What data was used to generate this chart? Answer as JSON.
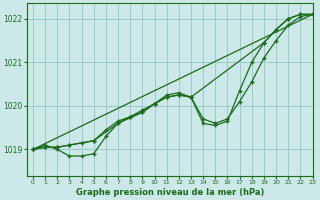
{
  "title": "Graphe pression niveau de la mer (hPa)",
  "bg_color": "#cce8e8",
  "grid_color": "#99cccc",
  "line_color": "#1a6b1a",
  "xlim": [
    -0.5,
    23
  ],
  "ylim": [
    1018.4,
    1022.35
  ],
  "yticks": [
    1019,
    1020,
    1021,
    1022
  ],
  "xticks": [
    0,
    1,
    2,
    3,
    4,
    5,
    6,
    7,
    8,
    9,
    10,
    11,
    12,
    13,
    14,
    15,
    16,
    17,
    18,
    19,
    20,
    21,
    22,
    23
  ],
  "series_straight": {
    "x": [
      0,
      23
    ],
    "y": [
      1019.0,
      1022.1
    ]
  },
  "series_main": {
    "x": [
      0,
      1,
      2,
      3,
      4,
      5,
      6,
      7,
      8,
      9,
      10,
      11,
      12,
      13,
      14,
      15,
      16,
      17,
      18,
      19,
      20,
      21,
      22,
      23
    ],
    "y": [
      1019.0,
      1019.1,
      1019.0,
      1018.85,
      1018.85,
      1018.9,
      1019.3,
      1019.6,
      1019.75,
      1019.85,
      1020.05,
      1020.25,
      1020.3,
      1020.2,
      1019.6,
      1019.55,
      1019.65,
      1020.35,
      1021.0,
      1021.45,
      1021.75,
      1022.0,
      1022.1,
      1022.1
    ]
  },
  "series_alt": {
    "x": [
      0,
      1,
      2,
      3,
      4,
      5,
      6,
      7,
      8,
      9,
      10,
      11,
      12,
      13,
      14,
      15,
      16,
      17,
      18,
      19,
      20,
      21,
      22,
      23
    ],
    "y": [
      1019.0,
      1019.05,
      1019.05,
      1019.1,
      1019.15,
      1019.2,
      1019.45,
      1019.65,
      1019.75,
      1019.9,
      1020.05,
      1020.2,
      1020.25,
      1020.2,
      1019.7,
      1019.6,
      1019.7,
      1020.1,
      1020.55,
      1021.1,
      1021.5,
      1021.85,
      1022.05,
      1022.1
    ]
  },
  "series_smooth": {
    "x": [
      0,
      1,
      2,
      3,
      5,
      7,
      9,
      10,
      11,
      12,
      13,
      19,
      20,
      21,
      22,
      23
    ],
    "y": [
      1019.0,
      1019.05,
      1019.05,
      1019.1,
      1019.2,
      1019.6,
      1019.85,
      1020.05,
      1020.2,
      1020.25,
      1020.2,
      1021.45,
      1021.75,
      1022.0,
      1022.1,
      1022.1
    ]
  }
}
